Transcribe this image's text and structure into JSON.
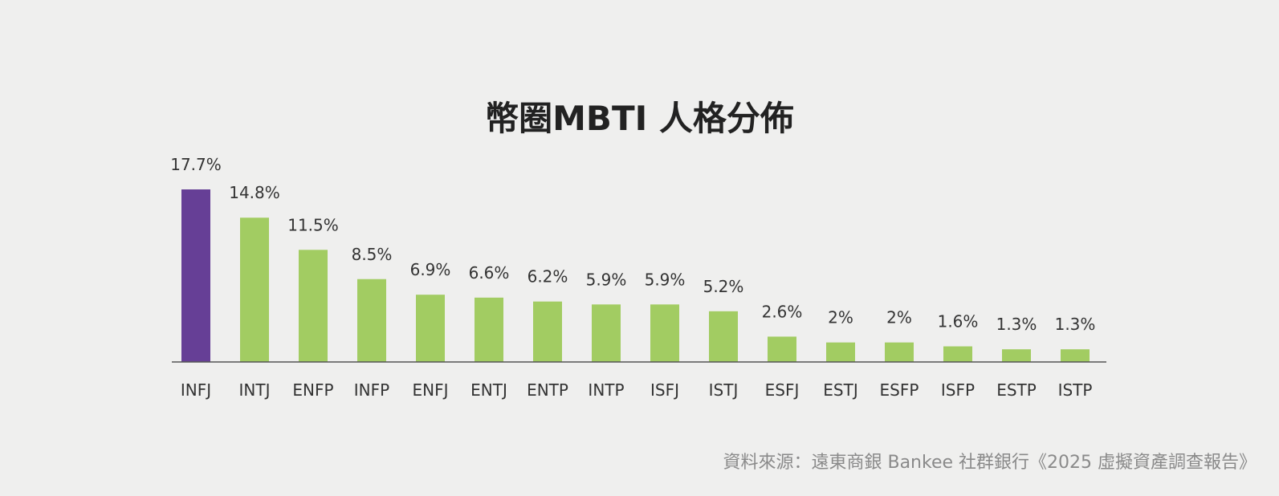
{
  "colors": {
    "background": "#efefee",
    "highlight_bar": "#663f96",
    "bar": "#a2cc62",
    "axis": "#555555",
    "label_text": "#333333",
    "source_text": "#8a8a8a"
  },
  "chart_data": {
    "type": "bar",
    "title": "幣圈MBTI 人格分佈",
    "categories": [
      "INFJ",
      "INTJ",
      "ENFP",
      "INFP",
      "ENFJ",
      "ENTJ",
      "ENTP",
      "INTP",
      "ISFJ",
      "ISTJ",
      "ESFJ",
      "ESTJ",
      "ESFP",
      "ISFP",
      "ESTP",
      "ISTP"
    ],
    "values": [
      17.7,
      14.8,
      11.5,
      8.5,
      6.9,
      6.6,
      6.2,
      5.9,
      5.9,
      5.2,
      2.6,
      2,
      2,
      1.6,
      1.3,
      1.3
    ],
    "data_labels": [
      "17.7%",
      "14.8%",
      "11.5%",
      "8.5%",
      "6.9%",
      "6.6%",
      "6.2%",
      "5.9%",
      "5.9%",
      "5.2%",
      "2.6%",
      "2%",
      "2%",
      "1.6%",
      "1.3%",
      "1.3%"
    ],
    "highlight_category": "INFJ",
    "unit": "%",
    "ylim": [
      0,
      17.7
    ],
    "grid": false,
    "legend": "none"
  },
  "source": "資料來源：遠東商銀 Bankee 社群銀行《2025 虛擬資產調查報告》"
}
